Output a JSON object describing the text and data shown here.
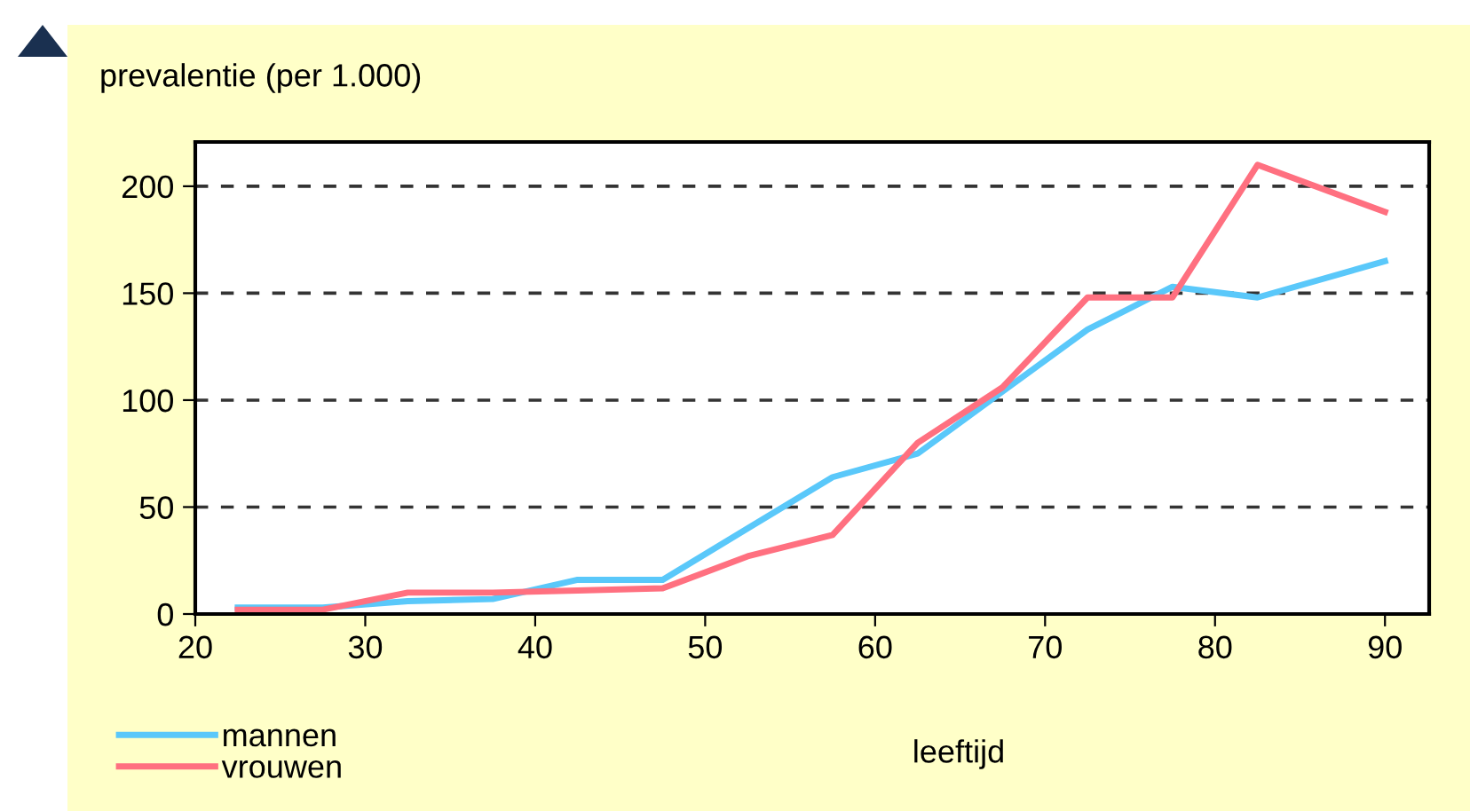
{
  "chart_data": {
    "type": "line",
    "ylabel": "prevalentie (per 1.000)",
    "xlabel": "leeftijd",
    "x": [
      22.5,
      27.5,
      32.5,
      37.5,
      42.5,
      47.5,
      52.5,
      57.5,
      62.5,
      67.5,
      72.5,
      77.5,
      82.5,
      90
    ],
    "series": [
      {
        "name": "mannen",
        "color": "#5ac8fa",
        "values": [
          3,
          3,
          6,
          7,
          16,
          16,
          40,
          64,
          75,
          104,
          133,
          153,
          148,
          165
        ]
      },
      {
        "name": "vrouwen",
        "color": "#ff7080",
        "values": [
          2,
          2,
          10,
          10,
          11,
          12,
          27,
          37,
          80,
          106,
          148,
          148,
          210,
          188
        ]
      }
    ],
    "xlim": [
      20,
      92.6
    ],
    "ylim": [
      0,
      220.7
    ],
    "xticks": [
      20,
      30,
      40,
      50,
      60,
      70,
      80,
      90
    ],
    "yticks": [
      0,
      50,
      100,
      150,
      200
    ],
    "grid": "y",
    "legend": "bottom left",
    "line_style": "solid",
    "marker": "none"
  }
}
